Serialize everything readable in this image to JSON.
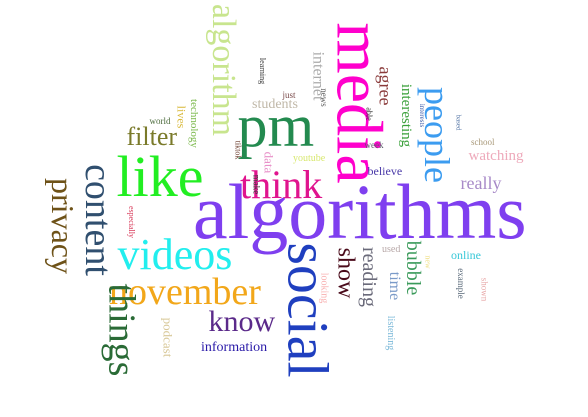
{
  "words": [
    {
      "text": "algorithms",
      "color": "#7f3fef",
      "vertical": false
    },
    {
      "text": "media",
      "color": "#ff00cc",
      "vertical": true
    },
    {
      "text": "social",
      "color": "#1f3fbf",
      "vertical": true
    },
    {
      "text": "pm",
      "color": "#238a4f",
      "vertical": false
    },
    {
      "text": "like",
      "color": "#22ee22",
      "vertical": false
    },
    {
      "text": "algorithm",
      "color": "#c8e58e",
      "vertical": true
    },
    {
      "text": "november",
      "color": "#f2a71a",
      "vertical": false
    },
    {
      "text": "videos",
      "color": "#22eeee",
      "vertical": false
    },
    {
      "text": "think",
      "color": "#e0148e",
      "vertical": false
    },
    {
      "text": "things",
      "color": "#2a6b36",
      "vertical": true
    },
    {
      "text": "content",
      "color": "#304f6f",
      "vertical": true
    },
    {
      "text": "people",
      "color": "#3c9cf0",
      "vertical": true
    },
    {
      "text": "privacy",
      "color": "#6e5218",
      "vertical": true
    },
    {
      "text": "know",
      "color": "#5b2a8a",
      "vertical": false
    },
    {
      "text": "show",
      "color": "#4a0a1a",
      "vertical": true
    },
    {
      "text": "filter",
      "color": "#7a7a2a",
      "vertical": false
    },
    {
      "text": "reading",
      "color": "#6a6a7a",
      "vertical": true
    },
    {
      "text": "bubble",
      "color": "#3a9a5a",
      "vertical": true
    },
    {
      "text": "interesting",
      "color": "#3aa03a",
      "vertical": true
    },
    {
      "text": "agree",
      "color": "#8a3a3a",
      "vertical": true
    },
    {
      "text": "really",
      "color": "#a88ac8",
      "vertical": false
    },
    {
      "text": "watching",
      "color": "#eeaabb",
      "vertical": false
    },
    {
      "text": "time",
      "color": "#7a9ac8",
      "vertical": true
    },
    {
      "text": "information",
      "color": "#2a1aa8",
      "vertical": false
    },
    {
      "text": "internet",
      "color": "#aaaaaa",
      "vertical": true
    },
    {
      "text": "students",
      "color": "#c0b8a8",
      "vertical": false
    },
    {
      "text": "technology",
      "color": "#7ab84a",
      "vertical": true
    },
    {
      "text": "podcast",
      "color": "#d8c898",
      "vertical": true
    },
    {
      "text": "believe",
      "color": "#4a3aa8",
      "vertical": false
    },
    {
      "text": "lives",
      "color": "#d8b838",
      "vertical": true
    },
    {
      "text": "listening",
      "color": "#7ab8d8",
      "vertical": true
    },
    {
      "text": "online",
      "color": "#38c8d8",
      "vertical": false
    },
    {
      "text": "data",
      "color": "#e890c8",
      "vertical": true
    },
    {
      "text": "youtube",
      "color": "#d8e870",
      "vertical": false
    },
    {
      "text": "looking",
      "color": "#f8b0b0",
      "vertical": true
    },
    {
      "text": "news",
      "color": "#5a5a5a",
      "vertical": true
    },
    {
      "text": "example",
      "color": "#5a6a7a",
      "vertical": true
    },
    {
      "text": "shown",
      "color": "#e8a8a8",
      "vertical": true
    },
    {
      "text": "used",
      "color": "#b8a8a8",
      "vertical": false
    },
    {
      "text": "new",
      "color": "#f0e088",
      "vertical": true
    },
    {
      "text": "school",
      "color": "#a89878",
      "vertical": false
    },
    {
      "text": "week",
      "color": "#5a5a6a",
      "vertical": false
    },
    {
      "text": "make",
      "color": "#3a3a3a",
      "vertical": true
    },
    {
      "text": "tiktok",
      "color": "#6a3a2a",
      "vertical": true
    },
    {
      "text": "world",
      "color": "#4a6a3a",
      "vertical": false
    },
    {
      "text": "learning",
      "color": "#3a3a3a",
      "vertical": true
    },
    {
      "text": "just",
      "color": "#7a4a4a",
      "vertical": false
    },
    {
      "text": "able",
      "color": "#2a2a2a",
      "vertical": true
    },
    {
      "text": "especially",
      "color": "#d83a5a",
      "vertical": true
    },
    {
      "text": "interests",
      "color": "#3a5aa8",
      "vertical": true
    },
    {
      "text": "based",
      "color": "#5a7aa8",
      "vertical": true
    }
  ]
}
